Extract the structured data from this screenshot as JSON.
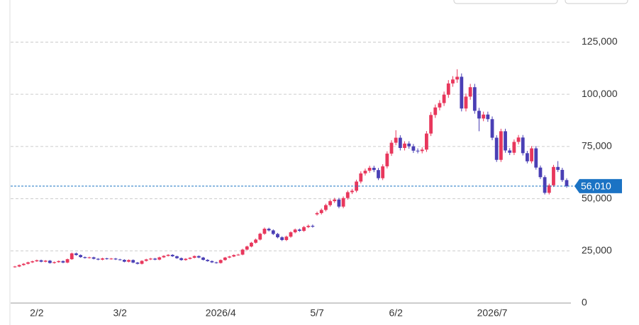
{
  "chart_data": {
    "type": "candlestick",
    "categories": [
      null,
      null,
      null,
      null,
      null,
      "2/2",
      null,
      null,
      null,
      null,
      null,
      null,
      null,
      null,
      null,
      null,
      null,
      null,
      null,
      null,
      null,
      null,
      null,
      null,
      "3/2",
      null,
      null,
      null,
      null,
      null,
      null,
      null,
      null,
      null,
      null,
      null,
      null,
      null,
      null,
      null,
      null,
      null,
      null,
      null,
      null,
      null,
      null,
      "2026/4",
      null,
      null,
      null,
      null,
      null,
      null,
      null,
      null,
      null,
      null,
      null,
      null,
      null,
      null,
      null,
      null,
      null,
      null,
      null,
      null,
      null,
      "5/7",
      null,
      null,
      null,
      null,
      null,
      null,
      null,
      null,
      null,
      null,
      null,
      null,
      null,
      null,
      null,
      null,
      null,
      "6/2",
      null,
      null,
      null,
      null,
      null,
      null,
      null,
      null,
      null,
      null,
      null,
      null,
      null,
      null,
      null,
      null,
      null,
      null,
      null,
      null,
      null,
      "2026/7",
      null,
      null,
      null,
      null,
      null,
      null,
      null,
      null,
      null,
      null,
      null,
      null,
      null,
      null,
      null,
      null,
      null
    ],
    "open": [
      17200,
      17500,
      18200,
      18800,
      19500,
      20000,
      20500,
      19800,
      20300,
      19200,
      19600,
      20100,
      19400,
      21000,
      23800,
      23000,
      22000,
      21600,
      21900,
      21200,
      20800,
      21400,
      21100,
      21300,
      20900,
      20700,
      19800,
      20600,
      19400,
      18800,
      20200,
      20900,
      21300,
      20800,
      21900,
      22600,
      23100,
      22400,
      21500,
      20600,
      21200,
      21700,
      22500,
      21800,
      20700,
      20100,
      19500,
      19200,
      20600,
      21800,
      22300,
      23000,
      23200,
      25600,
      27100,
      28900,
      30400,
      33200,
      35600,
      34800,
      33100,
      31500,
      30200,
      31800,
      33900,
      35200,
      34600,
      36400,
      37000,
      42500,
      43100,
      44600,
      46900,
      48800,
      49600,
      46200,
      50300,
      53100,
      53800,
      58200,
      62100,
      63400,
      64800,
      63700,
      59800,
      65500,
      71600,
      76800,
      79200,
      74300,
      76400,
      75100,
      73000,
      72800,
      73500,
      81200,
      90100,
      93700,
      95800,
      99800,
      105200,
      107100,
      108400,
      93200,
      98900,
      103400,
      92100,
      88400,
      90300,
      88100,
      79200,
      68600,
      82300,
      73100,
      72000,
      77200,
      79300,
      71800,
      67900,
      74100,
      64900,
      60300,
      52800,
      56400,
      65200,
      63800,
      58900
    ],
    "high": [
      17800,
      18500,
      19100,
      19800,
      20300,
      20800,
      20800,
      20600,
      20600,
      19900,
      20400,
      20400,
      21300,
      24200,
      24200,
      23300,
      22300,
      22200,
      22200,
      21500,
      21700,
      21700,
      21600,
      21600,
      21200,
      21000,
      20900,
      20900,
      19700,
      20500,
      21200,
      21600,
      21600,
      22200,
      22900,
      23400,
      23400,
      22700,
      21800,
      21500,
      22000,
      22800,
      22800,
      22100,
      21000,
      20400,
      19800,
      20900,
      22100,
      22600,
      23300,
      23600,
      26000,
      27500,
      29300,
      30900,
      33700,
      36200,
      36100,
      35300,
      33600,
      32000,
      32300,
      34400,
      35700,
      35700,
      36900,
      37600,
      37600,
      43800,
      45300,
      47600,
      49600,
      50400,
      50400,
      51100,
      53900,
      54700,
      59100,
      63100,
      64400,
      65800,
      65800,
      64700,
      66500,
      72700,
      78000,
      82800,
      80400,
      77500,
      77500,
      76200,
      74100,
      74600,
      82400,
      91500,
      95100,
      97200,
      101300,
      106800,
      108700,
      112000,
      110000,
      100400,
      105000,
      105000,
      93500,
      91700,
      91700,
      89400,
      80400,
      83500,
      83500,
      74200,
      78400,
      80500,
      80500,
      72900,
      75200,
      75200,
      65900,
      61200,
      57200,
      66200,
      68000,
      64800,
      59800
    ],
    "low": [
      16900,
      17200,
      17900,
      18500,
      19200,
      19700,
      19500,
      19500,
      18900,
      18900,
      19300,
      19100,
      19100,
      20700,
      22700,
      21700,
      21300,
      21300,
      20900,
      20500,
      20500,
      20800,
      20800,
      20600,
      20400,
      19500,
      19500,
      19100,
      18500,
      18500,
      19900,
      20600,
      20500,
      20500,
      21600,
      22300,
      22100,
      21200,
      20300,
      20300,
      20900,
      21400,
      21500,
      20400,
      19800,
      19200,
      18900,
      18900,
      20300,
      21500,
      22000,
      22700,
      22900,
      25200,
      26700,
      28500,
      30000,
      32700,
      34300,
      32600,
      31000,
      29700,
      29700,
      31300,
      33400,
      34100,
      34100,
      35900,
      36100,
      41900,
      42400,
      43900,
      46200,
      48000,
      45400,
      45400,
      49500,
      52200,
      53000,
      57300,
      61100,
      62400,
      62700,
      58900,
      58900,
      64500,
      70500,
      75600,
      73100,
      73100,
      73900,
      71900,
      71700,
      71700,
      72400,
      80000,
      88700,
      92300,
      94400,
      98300,
      103600,
      105500,
      91800,
      91800,
      97400,
      90700,
      82300,
      87100,
      86800,
      78000,
      67600,
      67600,
      72000,
      70900,
      70900,
      76000,
      70700,
      66900,
      66900,
      63900,
      59400,
      52000,
      52000,
      55600,
      62800,
      58000,
      55200
    ],
    "close": [
      17500,
      18200,
      18800,
      19500,
      20000,
      20500,
      19800,
      20300,
      19200,
      19600,
      20100,
      19400,
      21000,
      23800,
      23000,
      22000,
      21600,
      21900,
      21200,
      20800,
      21400,
      21100,
      21300,
      20900,
      20700,
      19800,
      20600,
      19400,
      18800,
      20200,
      20900,
      21300,
      20800,
      21900,
      22600,
      23100,
      22400,
      21500,
      20600,
      21200,
      21700,
      22500,
      21800,
      20700,
      20100,
      19500,
      19200,
      20600,
      21800,
      22300,
      23000,
      23200,
      25600,
      27100,
      28900,
      30400,
      33200,
      35600,
      34800,
      33100,
      31500,
      30200,
      31800,
      33900,
      35200,
      34600,
      36400,
      37000,
      36600,
      43100,
      44600,
      46900,
      48800,
      49600,
      46200,
      50300,
      53100,
      53800,
      58200,
      62100,
      63400,
      64800,
      63700,
      59800,
      65500,
      71600,
      76800,
      79200,
      74300,
      76400,
      75100,
      73000,
      72800,
      73500,
      81200,
      90100,
      93700,
      95800,
      99800,
      105200,
      107100,
      108400,
      93200,
      98900,
      103400,
      92100,
      88400,
      90300,
      88100,
      79200,
      68600,
      82300,
      73100,
      72000,
      77200,
      79300,
      71800,
      67900,
      74100,
      64900,
      60300,
      52800,
      56400,
      65200,
      63800,
      58900,
      56010
    ],
    "last_label": "56,010",
    "up_color": "#e8375c",
    "down_color": "#4a3fb5",
    "last_color": "#1b73c4",
    "ylim": [
      0,
      135000
    ],
    "yticks": [
      0,
      {
        "value": 25000,
        "label": "25,000"
      },
      {
        "value": 50000,
        "label": "50,000"
      },
      {
        "value": 75000,
        "label": "75,000"
      },
      {
        "value": 100000,
        "label": "100,000"
      },
      {
        "value": 125000,
        "label": "125,000"
      }
    ],
    "grid": true
  }
}
